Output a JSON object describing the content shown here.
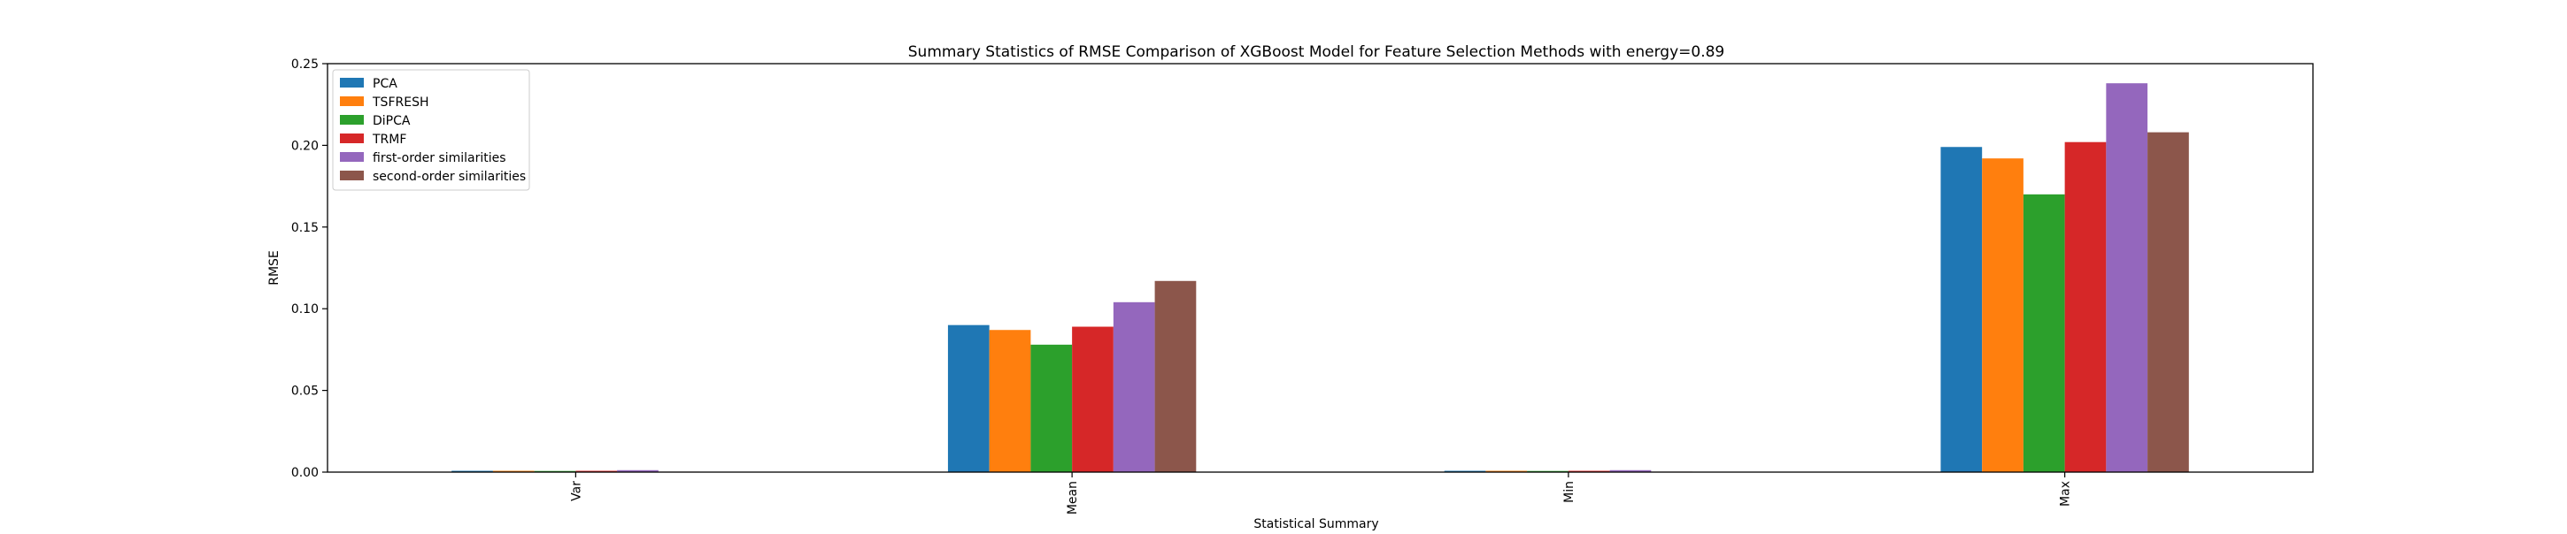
{
  "chart_data": {
    "type": "bar",
    "title": "Summary Statistics of RMSE Comparison of XGBoost Model for Feature Selection Methods with energy=0.89",
    "xlabel": "Statistical Summary",
    "ylabel": "RMSE",
    "categories": [
      "Var",
      "Mean",
      "Min",
      "Max"
    ],
    "ylim": [
      0,
      0.25
    ],
    "yticks": [
      "0.00",
      "0.05",
      "0.10",
      "0.15",
      "0.20",
      "0.25"
    ],
    "grid": false,
    "legend_position": "top-left",
    "series": [
      {
        "name": "PCA",
        "color": "#1f77b4",
        "values": [
          0.0008,
          0.09,
          0.0008,
          0.199
        ]
      },
      {
        "name": "TSFRESH",
        "color": "#ff7f0e",
        "values": [
          0.0008,
          0.087,
          0.0008,
          0.192
        ]
      },
      {
        "name": "DiPCA",
        "color": "#2ca02c",
        "values": [
          0.0007,
          0.078,
          0.0007,
          0.17
        ]
      },
      {
        "name": "TRMF",
        "color": "#d62728",
        "values": [
          0.0008,
          0.089,
          0.0008,
          0.202
        ]
      },
      {
        "name": "first-order similarities",
        "color": "#9467bd",
        "values": [
          0.0012,
          0.104,
          0.0012,
          0.238
        ]
      },
      {
        "name": "second-order similarities",
        "color": "#8c564b",
        "values": [
          0.0003,
          0.117,
          0.0003,
          0.208
        ]
      }
    ]
  }
}
